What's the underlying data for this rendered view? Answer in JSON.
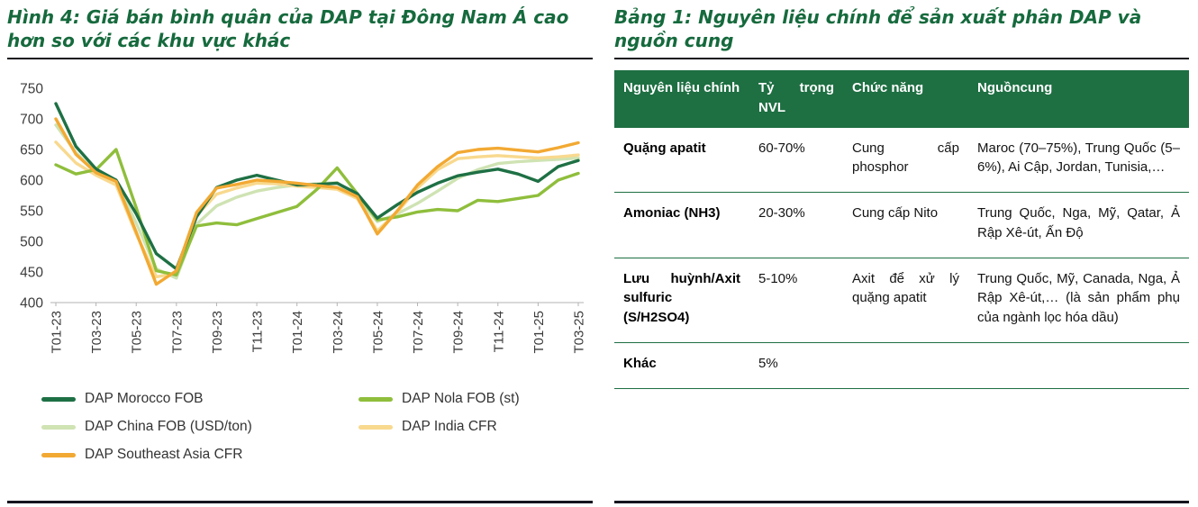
{
  "palette": {
    "title_green": "#166A3D",
    "header_green": "#1E6F42",
    "divider_green": "#1E6F42",
    "rule_dark": "#15151F",
    "axis_text": "#3C3C3C",
    "axis_line": "#B3B3B3"
  },
  "figure": {
    "title": "Hình 4: Giá bán bình quân của DAP tại Đông Nam Á cao hơn so với các khu vực khác"
  },
  "chart_data": {
    "type": "line",
    "ylim": [
      400,
      750
    ],
    "y_ticks": [
      750,
      700,
      650,
      600,
      550,
      500,
      450,
      400
    ],
    "x_ticks": [
      "T01-23",
      "T03-23",
      "T05-23",
      "T07-23",
      "T09-23",
      "T11-23",
      "T01-24",
      "T03-24",
      "T05-24",
      "T07-24",
      "T09-24",
      "T11-24",
      "T01-25",
      "T03-25"
    ],
    "x_tick_every": 2,
    "grid": false,
    "legend_position": "bottom",
    "series": [
      {
        "name": "DAP Morocco FOB",
        "color": "#1E7044",
        "values": [
          725,
          655,
          618,
          600,
          545,
          480,
          455,
          540,
          588,
          600,
          608,
          600,
          592,
          593,
          595,
          578,
          538,
          560,
          580,
          595,
          607,
          613,
          618,
          610,
          598,
          622,
          632
        ]
      },
      {
        "name": "DAP Nola FOB (st)",
        "color": "#8FBE3C",
        "values": [
          625,
          610,
          617,
          650,
          555,
          452,
          445,
          525,
          530,
          527,
          537,
          547,
          557,
          585,
          620,
          578,
          535,
          540,
          548,
          552,
          550,
          567,
          565,
          570,
          575,
          600,
          611
        ]
      },
      {
        "name": "DAP China FOB (USD/ton)",
        "color": "#CFE3B3",
        "values": [
          690,
          645,
          612,
          598,
          530,
          455,
          440,
          528,
          558,
          572,
          582,
          588,
          592,
          594,
          596,
          572,
          532,
          545,
          562,
          582,
          603,
          617,
          627,
          630,
          632,
          634,
          636
        ]
      },
      {
        "name": "DAP India CFR",
        "color": "#F8D98E",
        "values": [
          662,
          628,
          608,
          592,
          512,
          442,
          448,
          542,
          577,
          587,
          595,
          594,
          590,
          588,
          585,
          570,
          517,
          548,
          587,
          617,
          635,
          638,
          640,
          638,
          636,
          638,
          641
        ]
      },
      {
        "name": "DAP Southeast Asia CFR",
        "color": "#F2A933",
        "values": [
          700,
          642,
          612,
          598,
          515,
          430,
          452,
          547,
          587,
          593,
          600,
          598,
          595,
          591,
          588,
          573,
          512,
          550,
          592,
          622,
          645,
          650,
          652,
          649,
          646,
          653,
          661
        ]
      }
    ]
  },
  "table": {
    "title": "Bảng 1: Nguyên liệu chính để sản xuất phân DAP và nguồn cung",
    "headers": [
      "Nguyên liệu chính",
      "Tỷ trọng NVL",
      "Chức năng",
      "Nguồncung"
    ],
    "rows": [
      [
        "Quặng apatit",
        "60-70%",
        "Cung cấp phosphor",
        "Maroc (70–75%), Trung Quốc (5–6%), Ai Cập, Jordan, Tunisia,…"
      ],
      [
        "Amoniac (NH3)",
        "20-30%",
        "Cung cấp Nito",
        "Trung Quốc, Nga, Mỹ, Qatar, Ả Rập Xê-út, Ấn Độ"
      ],
      [
        "Lưu huỳnh/Axit sulfuric (S/H2SO4)",
        "5-10%",
        "Axit để xử lý quặng apatit",
        "Trung Quốc, Mỹ, Canada, Nga, Ả Rập Xê-út,… (là sản phẩm phụ của ngành lọc hóa dầu)"
      ],
      [
        "Khác",
        "5%",
        "",
        ""
      ]
    ]
  }
}
